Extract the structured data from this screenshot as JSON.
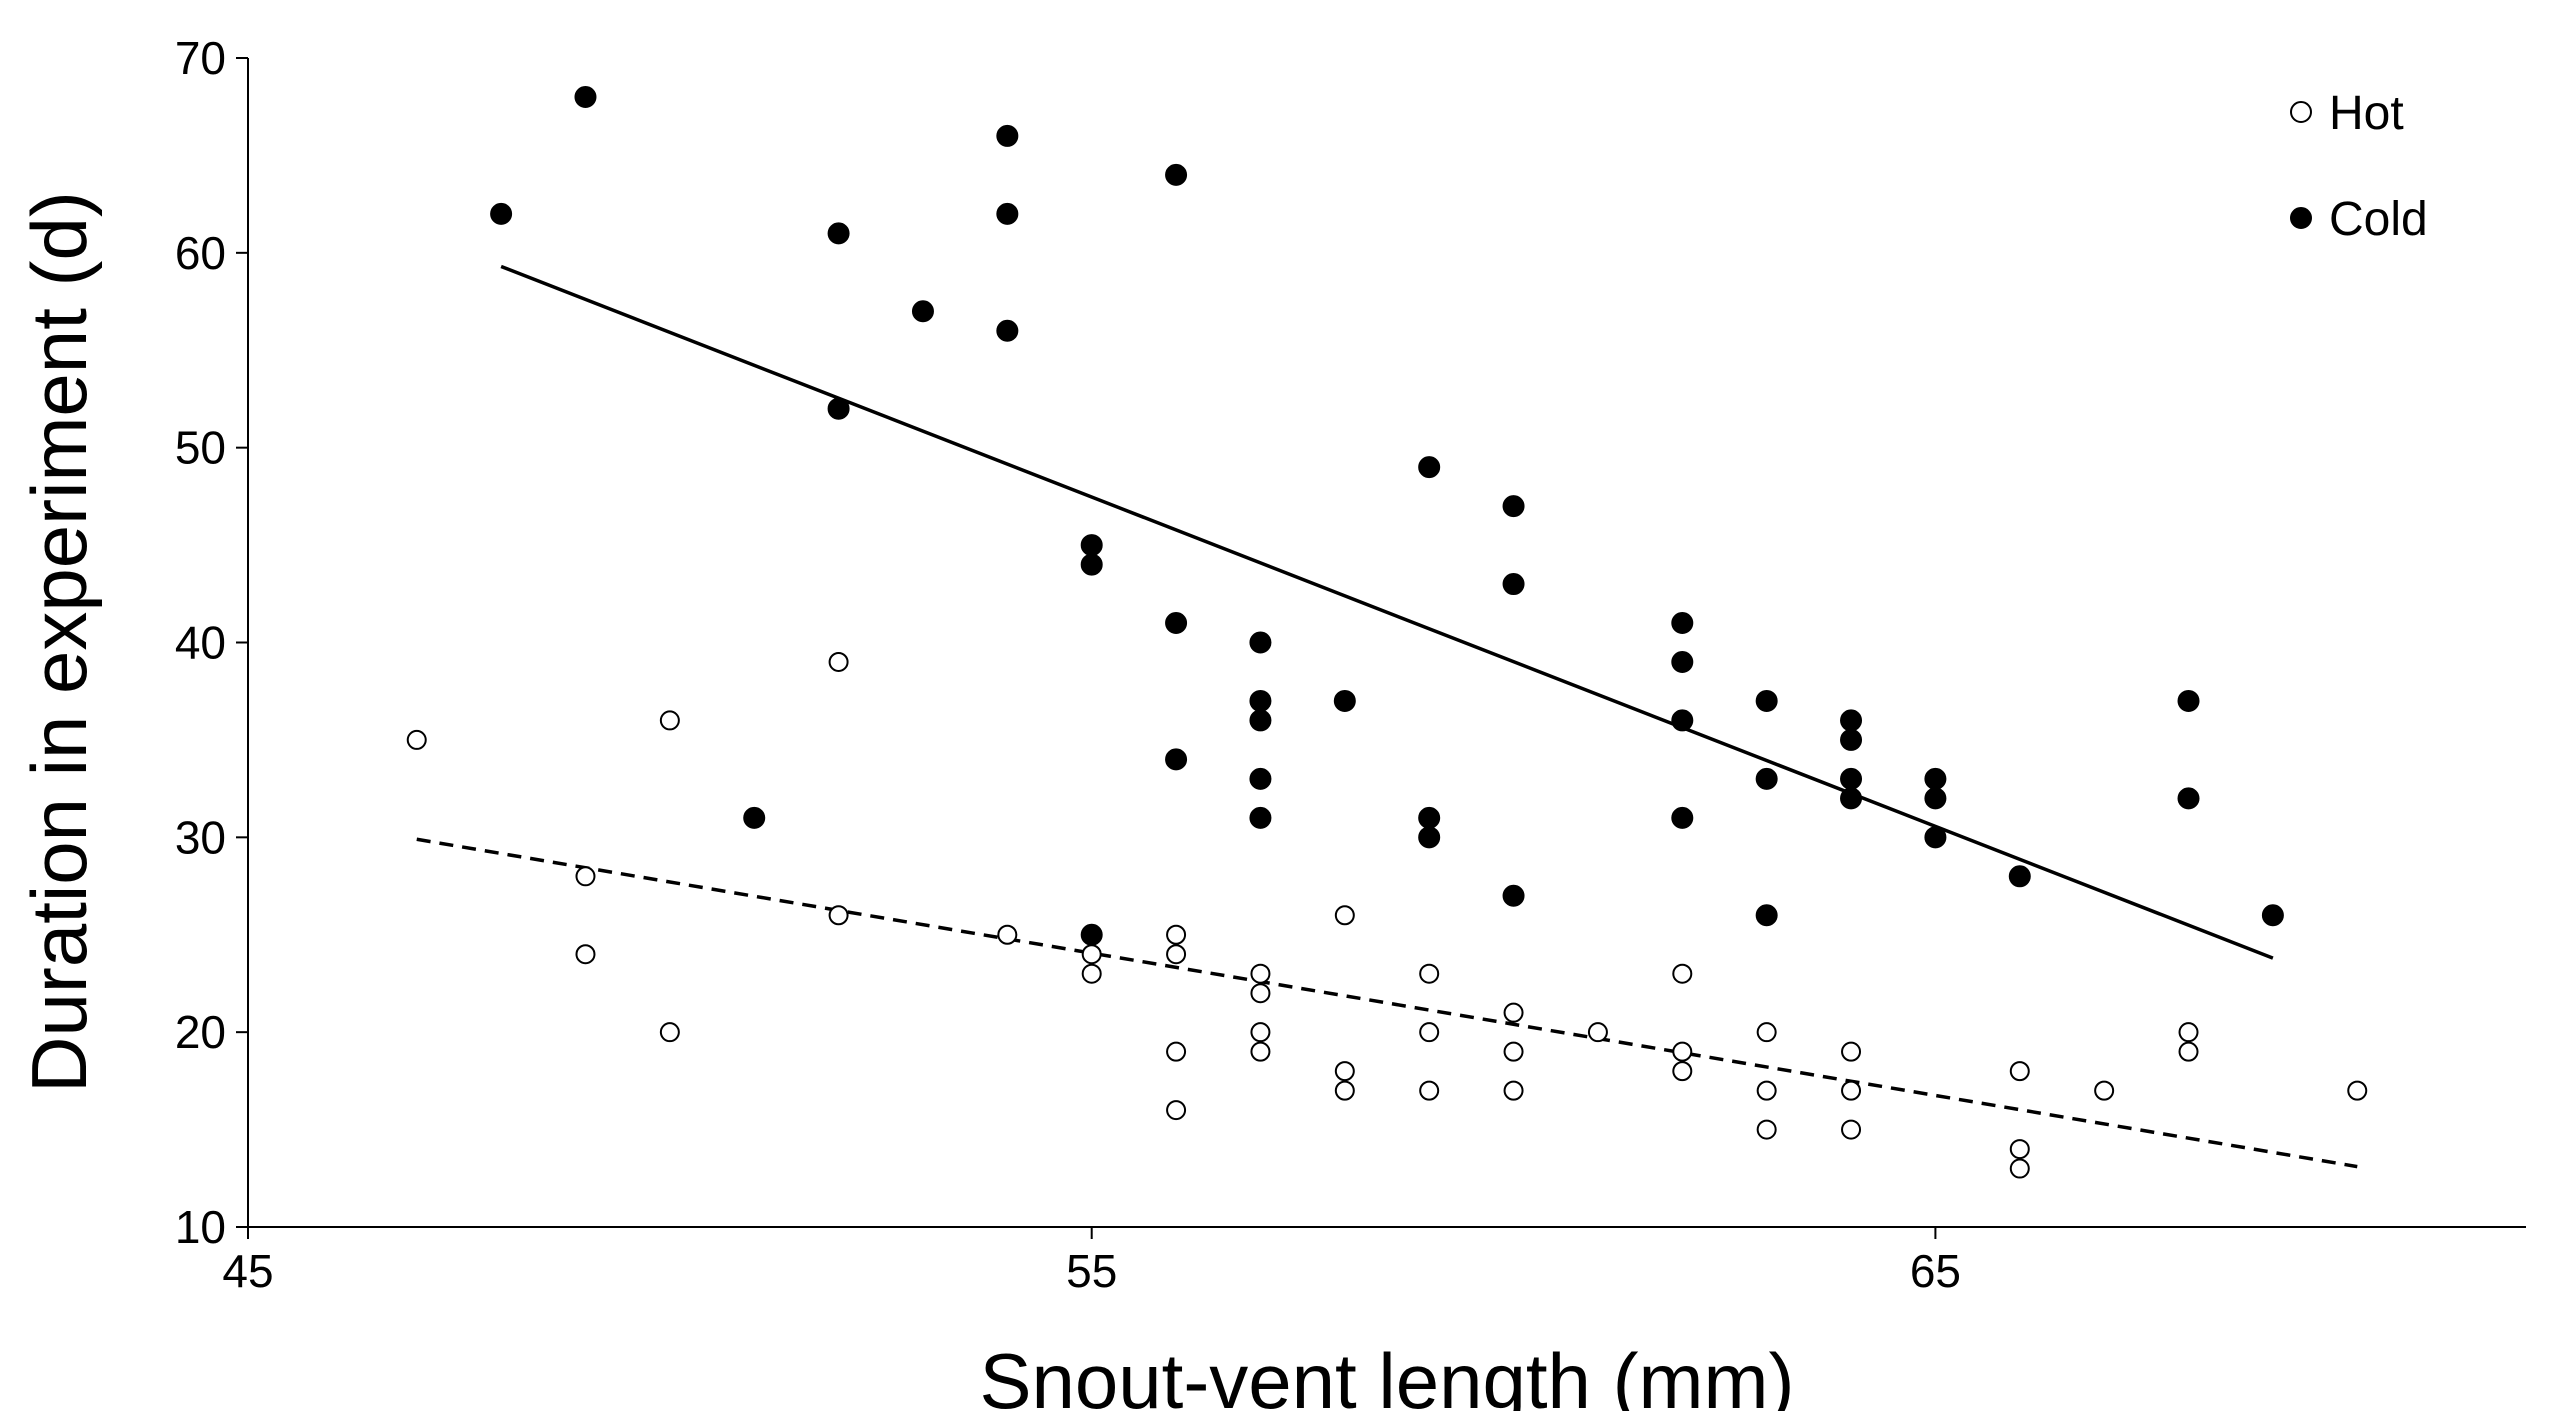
{
  "chart_data": {
    "type": "scatter",
    "x_label": "Snout-vent length (mm)",
    "y_label": "Duration in experiment (d)",
    "xlim": [
      45,
      72
    ],
    "xticks": [
      45,
      55,
      65
    ],
    "ylim": [
      10,
      70
    ],
    "yticks": [
      10,
      20,
      30,
      40,
      50,
      60,
      70
    ],
    "legend_position": "upper right",
    "series": [
      {
        "name": "Hot",
        "color": "#000000",
        "marker": "open",
        "x": [
          47,
          49,
          49,
          50,
          50,
          52,
          52,
          54,
          55,
          55,
          56,
          56,
          56,
          56,
          57,
          57,
          57,
          57,
          58,
          58,
          58,
          59,
          59,
          59,
          60,
          60,
          60,
          61,
          62,
          62,
          62,
          63,
          63,
          63,
          64,
          64,
          64,
          66,
          66,
          66,
          67,
          68,
          68,
          70
        ],
        "y": [
          35,
          28,
          24,
          36,
          20,
          39,
          26,
          25,
          24,
          23,
          25,
          24,
          19,
          16,
          23,
          22,
          20,
          19,
          26,
          18,
          17,
          23,
          20,
          17,
          21,
          19,
          17,
          20,
          23,
          19,
          18,
          20,
          17,
          15,
          19,
          17,
          15,
          18,
          14,
          13,
          17,
          20,
          19,
          17
        ],
        "trend": {
          "x": [
            47,
            70
          ],
          "y": [
            29.9,
            13.1
          ],
          "dash": true
        }
      },
      {
        "name": "Cold",
        "color": "#000000",
        "marker": "filled",
        "x": [
          48,
          49,
          51,
          52,
          52,
          53,
          54,
          54,
          54,
          55,
          55,
          55,
          56,
          56,
          56,
          57,
          57,
          57,
          57,
          57,
          58,
          59,
          59,
          59,
          60,
          60,
          60,
          62,
          62,
          62,
          62,
          63,
          63,
          63,
          64,
          64,
          64,
          64,
          65,
          65,
          65,
          66,
          68,
          68,
          69
        ],
        "y": [
          62,
          68,
          31,
          61,
          52,
          57,
          66,
          62,
          56,
          45,
          44,
          25,
          64,
          41,
          34,
          40,
          37,
          36,
          33,
          31,
          37,
          49,
          31,
          30,
          47,
          43,
          27,
          41,
          39,
          36,
          31,
          37,
          33,
          26,
          36,
          35,
          33,
          32,
          33,
          32,
          30,
          28,
          37,
          32,
          26
        ],
        "trend": {
          "x": [
            48,
            69
          ],
          "y": [
            59.3,
            23.8
          ],
          "dash": false
        }
      }
    ]
  }
}
